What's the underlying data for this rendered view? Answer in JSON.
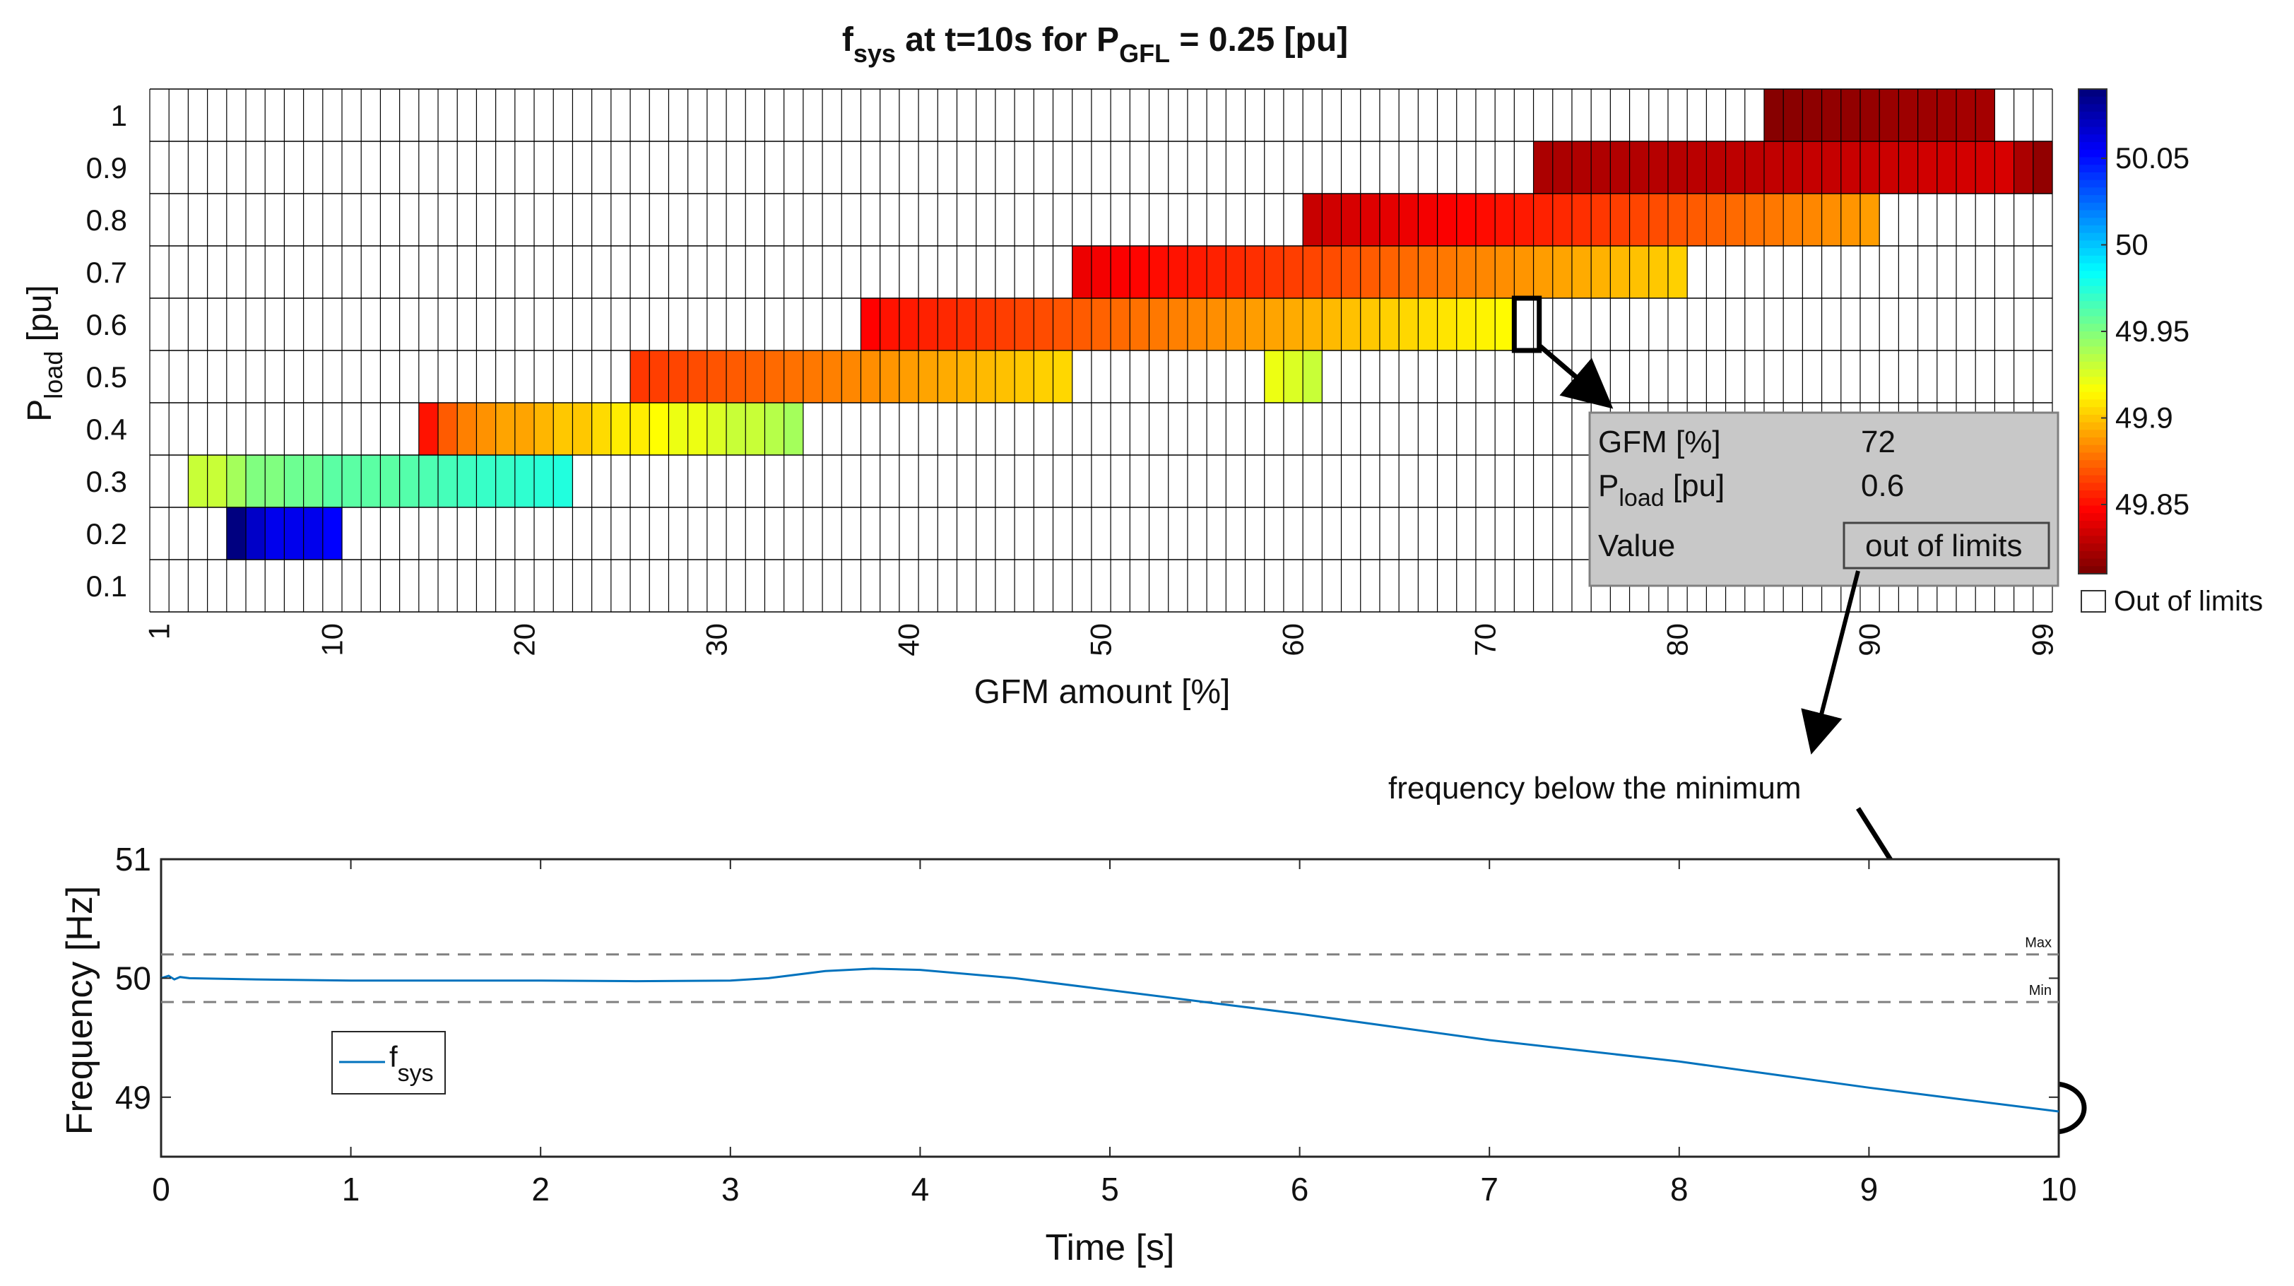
{
  "colors": {
    "cmap_low": "#000080",
    "cmap_high": "#800000",
    "grid": "#000000",
    "line": "#0072BD",
    "limit_line": "#808080",
    "tooltip_bg": "#c8c8c8"
  },
  "chart_data": [
    {
      "type": "heatmap",
      "title_main": "f",
      "title_sub": "sys",
      "title_mid": " at t=10s for P",
      "title_sub2": "GFL",
      "title_end": " = 0.25 [pu]",
      "xlabel": "GFM amount [%]",
      "ylabel_main": "P",
      "ylabel_sub": "load",
      "ylabel_end": " [pu]",
      "x_range": [
        1,
        99
      ],
      "y_rows": [
        0.1,
        0.2,
        0.3,
        0.4,
        0.5,
        0.6,
        0.7,
        0.8,
        0.9,
        1
      ],
      "y_ticks": [
        "0.1",
        "0.2",
        "0.3",
        "0.4",
        "0.5",
        "0.6",
        "0.7",
        "0.8",
        "0.9",
        "1"
      ],
      "x_ticks": [
        {
          "value": 1,
          "label": "1"
        },
        {
          "value": 10,
          "label": "10"
        },
        {
          "value": 20,
          "label": "20"
        },
        {
          "value": 30,
          "label": "30"
        },
        {
          "value": 40,
          "label": "40"
        },
        {
          "value": 50,
          "label": "50"
        },
        {
          "value": 60,
          "label": "60"
        },
        {
          "value": 70,
          "label": "70"
        },
        {
          "value": 80,
          "label": "80"
        },
        {
          "value": 90,
          "label": "90"
        },
        {
          "value": 99,
          "label": "99"
        }
      ],
      "colorbar": {
        "range": [
          49.81,
          50.09
        ],
        "ticks": [
          "50.05",
          "50",
          "49.95",
          "49.9",
          "49.85"
        ],
        "tick_values": [
          50.05,
          50,
          49.95,
          49.9,
          49.85
        ],
        "out_of_limits_label": "Out of limits"
      },
      "cell_runs": [
        {
          "pload": 0.2,
          "x0": 5,
          "values": [
            50.09,
            50.07,
            50.06,
            50.06,
            50.06,
            50.055
          ]
        },
        {
          "pload": 0.3,
          "x0": 3,
          "values": [
            49.93,
            49.93,
            49.94,
            49.95,
            49.95,
            49.955,
            49.955,
            49.96,
            49.96,
            49.96,
            49.96,
            49.962,
            49.964,
            49.966,
            49.968,
            49.97,
            49.97,
            49.972,
            49.974,
            49.976
          ]
        },
        {
          "pload": 0.4,
          "x0": 15,
          "values": [
            49.85,
            49.87,
            49.88,
            49.885,
            49.89,
            49.89,
            49.895,
            49.9,
            49.9,
            49.905,
            49.91,
            49.91,
            49.915,
            49.92,
            49.92,
            49.925,
            49.93,
            49.93,
            49.935,
            49.94
          ]
        },
        {
          "pload": 0.5,
          "x0": 26,
          "values": [
            49.86,
            49.862,
            49.864,
            49.866,
            49.868,
            49.87,
            49.872,
            49.874,
            49.876,
            49.878,
            49.88,
            49.882,
            49.884,
            49.886,
            49.888,
            49.89,
            49.892,
            49.894,
            49.896,
            49.898,
            49.9,
            49.902,
            49.904
          ]
        },
        {
          "pload": 0.5,
          "x0": 59,
          "values": [
            49.92,
            49.925,
            49.93
          ]
        },
        {
          "pload": 0.6,
          "x0": 38,
          "values": [
            49.845,
            49.85,
            49.852,
            49.854,
            49.856,
            49.858,
            49.86,
            49.862,
            49.864,
            49.866,
            49.868,
            49.87,
            49.872,
            49.874,
            49.876,
            49.878,
            49.88,
            49.882,
            49.884,
            49.886,
            49.888,
            49.89,
            49.892,
            49.894,
            49.896,
            49.898,
            49.9,
            49.902,
            49.904,
            49.906,
            49.908,
            49.91,
            49.912,
            49.914
          ]
        },
        {
          "pload": 0.7,
          "x0": 49,
          "values": [
            49.84,
            49.842,
            49.844,
            49.846,
            49.848,
            49.85,
            49.852,
            49.854,
            49.856,
            49.858,
            49.86,
            49.862,
            49.864,
            49.866,
            49.868,
            49.87,
            49.872,
            49.874,
            49.876,
            49.878,
            49.88,
            49.882,
            49.884,
            49.886,
            49.888,
            49.89,
            49.892,
            49.894,
            49.896,
            49.898,
            49.9,
            49.902
          ]
        },
        {
          "pload": 0.8,
          "x0": 61,
          "values": [
            49.83,
            49.832,
            49.834,
            49.836,
            49.838,
            49.84,
            49.842,
            49.844,
            49.846,
            49.848,
            49.85,
            49.852,
            49.854,
            49.856,
            49.858,
            49.86,
            49.862,
            49.864,
            49.866,
            49.868,
            49.87,
            49.872,
            49.874,
            49.876,
            49.878,
            49.88,
            49.882,
            49.884,
            49.886,
            49.888
          ]
        },
        {
          "pload": 0.9,
          "x0": 73,
          "values": [
            49.822,
            49.822,
            49.823,
            49.823,
            49.824,
            49.824,
            49.825,
            49.825,
            49.826,
            49.826,
            49.827,
            49.827,
            49.828,
            49.828,
            49.829,
            49.829,
            49.83,
            49.83,
            49.831,
            49.831,
            49.832,
            49.832,
            49.833,
            49.833,
            49.834,
            49.822,
            49.815
          ]
        },
        {
          "pload": 1,
          "x0": 85,
          "values": [
            49.812,
            49.813,
            49.814,
            49.815,
            49.815,
            49.816,
            49.817,
            49.818,
            49.818,
            49.819,
            49.82,
            49.82
          ]
        }
      ],
      "highlight": {
        "gfm": 72,
        "pload": 0.6
      },
      "tooltip": {
        "gfm_label": "GFM [%]",
        "gfm_value": "72",
        "pload_label_main": "P",
        "pload_label_sub": "load",
        "pload_label_end": " [pu]",
        "pload_value": "0.6",
        "value_label": "Value",
        "value_value": "out of limits"
      },
      "annotation": "frequency below the minimum"
    },
    {
      "type": "line",
      "xlabel": "Time [s]",
      "ylabel": "Frequency [Hz]",
      "xlim": [
        0,
        10
      ],
      "ylim": [
        48.5,
        51
      ],
      "x_ticks": [
        "0",
        "1",
        "2",
        "3",
        "4",
        "5",
        "6",
        "7",
        "8",
        "9",
        "10"
      ],
      "y_ticks": [
        "51",
        "50",
        "49"
      ],
      "y_tick_values": [
        51,
        50,
        49
      ],
      "limits": [
        {
          "name": "Max",
          "value": 50.2,
          "label": "Max"
        },
        {
          "name": "Min",
          "value": 49.8,
          "label": "Min"
        }
      ],
      "legend_main": "f",
      "legend_sub": "sys",
      "series": [
        {
          "name": "fsys",
          "points": [
            [
              0,
              50.0
            ],
            [
              0.04,
              50.02
            ],
            [
              0.07,
              49.99
            ],
            [
              0.1,
              50.01
            ],
            [
              0.15,
              50.0
            ],
            [
              0.5,
              49.99
            ],
            [
              1.0,
              49.98
            ],
            [
              2.0,
              49.98
            ],
            [
              2.5,
              49.975
            ],
            [
              3.0,
              49.98
            ],
            [
              3.2,
              50.0
            ],
            [
              3.5,
              50.06
            ],
            [
              3.75,
              50.08
            ],
            [
              4.0,
              50.07
            ],
            [
              4.5,
              50.0
            ],
            [
              5.0,
              49.9
            ],
            [
              5.5,
              49.8
            ],
            [
              6.0,
              49.7
            ],
            [
              7.0,
              49.48
            ],
            [
              8.0,
              49.3
            ],
            [
              9.0,
              49.08
            ],
            [
              9.5,
              48.98
            ],
            [
              10.0,
              48.88
            ]
          ]
        }
      ]
    }
  ]
}
